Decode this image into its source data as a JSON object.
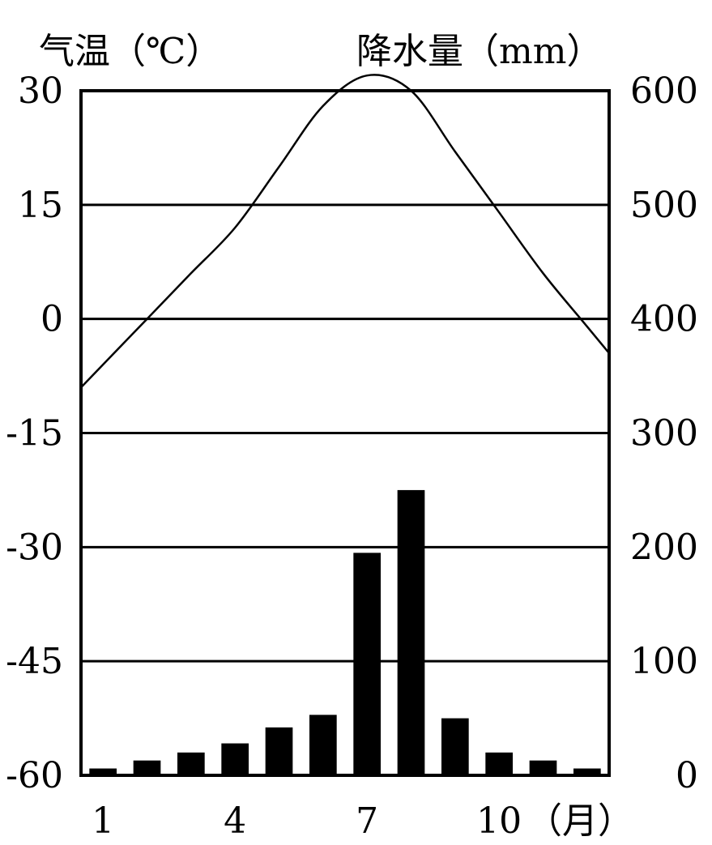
{
  "chart_data": {
    "type": "bar+line",
    "title": "",
    "temperature_axis": {
      "label": "气温（℃）",
      "ticks": [
        "30",
        "15",
        "0",
        "-15",
        "-30",
        "-45",
        "-60"
      ],
      "range": [
        -60,
        30
      ]
    },
    "precipitation_axis": {
      "label": "降水量（mm）",
      "ticks": [
        "600",
        "500",
        "400",
        "300",
        "200",
        "100",
        "0"
      ],
      "range": [
        0,
        600
      ]
    },
    "x_axis": {
      "ticks": [
        "1",
        "4",
        "7",
        "10"
      ],
      "unit_label": "（月）"
    },
    "months": [
      1,
      2,
      3,
      4,
      5,
      6,
      7,
      8,
      9,
      10,
      11,
      12
    ],
    "precipitation": [
      6,
      13,
      20,
      28,
      42,
      53,
      195,
      250,
      50,
      20,
      13,
      6
    ],
    "temperature": [
      -6,
      0,
      6,
      12,
      20,
      28,
      32,
      30,
      22,
      14,
      6,
      -1
    ],
    "grid": true,
    "bar_color": "#000000",
    "line_color": "#000000"
  }
}
